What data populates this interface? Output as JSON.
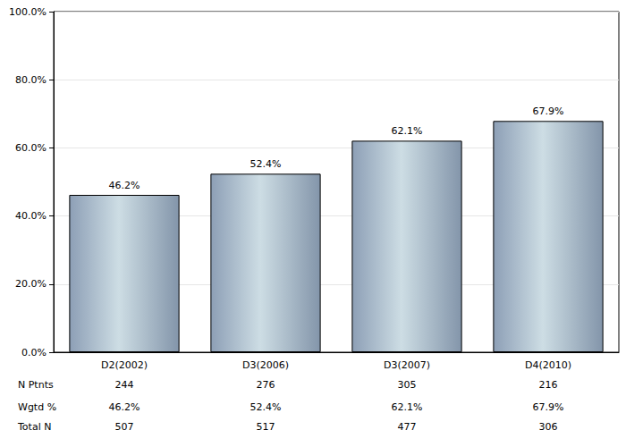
{
  "chart_data": {
    "type": "bar",
    "categories": [
      "D2(2002)",
      "D3(2006)",
      "D3(2007)",
      "D4(2010)"
    ],
    "values": [
      46.2,
      52.4,
      62.1,
      67.9
    ],
    "value_labels": [
      "46.2%",
      "52.4%",
      "62.1%",
      "67.9%"
    ],
    "data_labels": true,
    "color": "#a9b9cb",
    "ylim": [
      0,
      100
    ],
    "yticks": [
      {
        "value": 0,
        "label": "0.0%"
      },
      {
        "value": 20,
        "label": "20.0%"
      },
      {
        "value": 40,
        "label": "40.0%"
      },
      {
        "value": 60,
        "label": "60.0%"
      },
      {
        "value": 80,
        "label": "80.0%"
      },
      {
        "value": 100,
        "label": "100.0%"
      }
    ],
    "grid": true,
    "table": {
      "row_labels": [
        "N Ptnts",
        "Wgtd %",
        "Total N"
      ],
      "rows": [
        [
          244,
          276,
          305,
          216
        ],
        [
          "46.2%",
          "52.4%",
          "62.1%",
          "67.9%"
        ],
        [
          507,
          517,
          477,
          306
        ]
      ]
    }
  }
}
